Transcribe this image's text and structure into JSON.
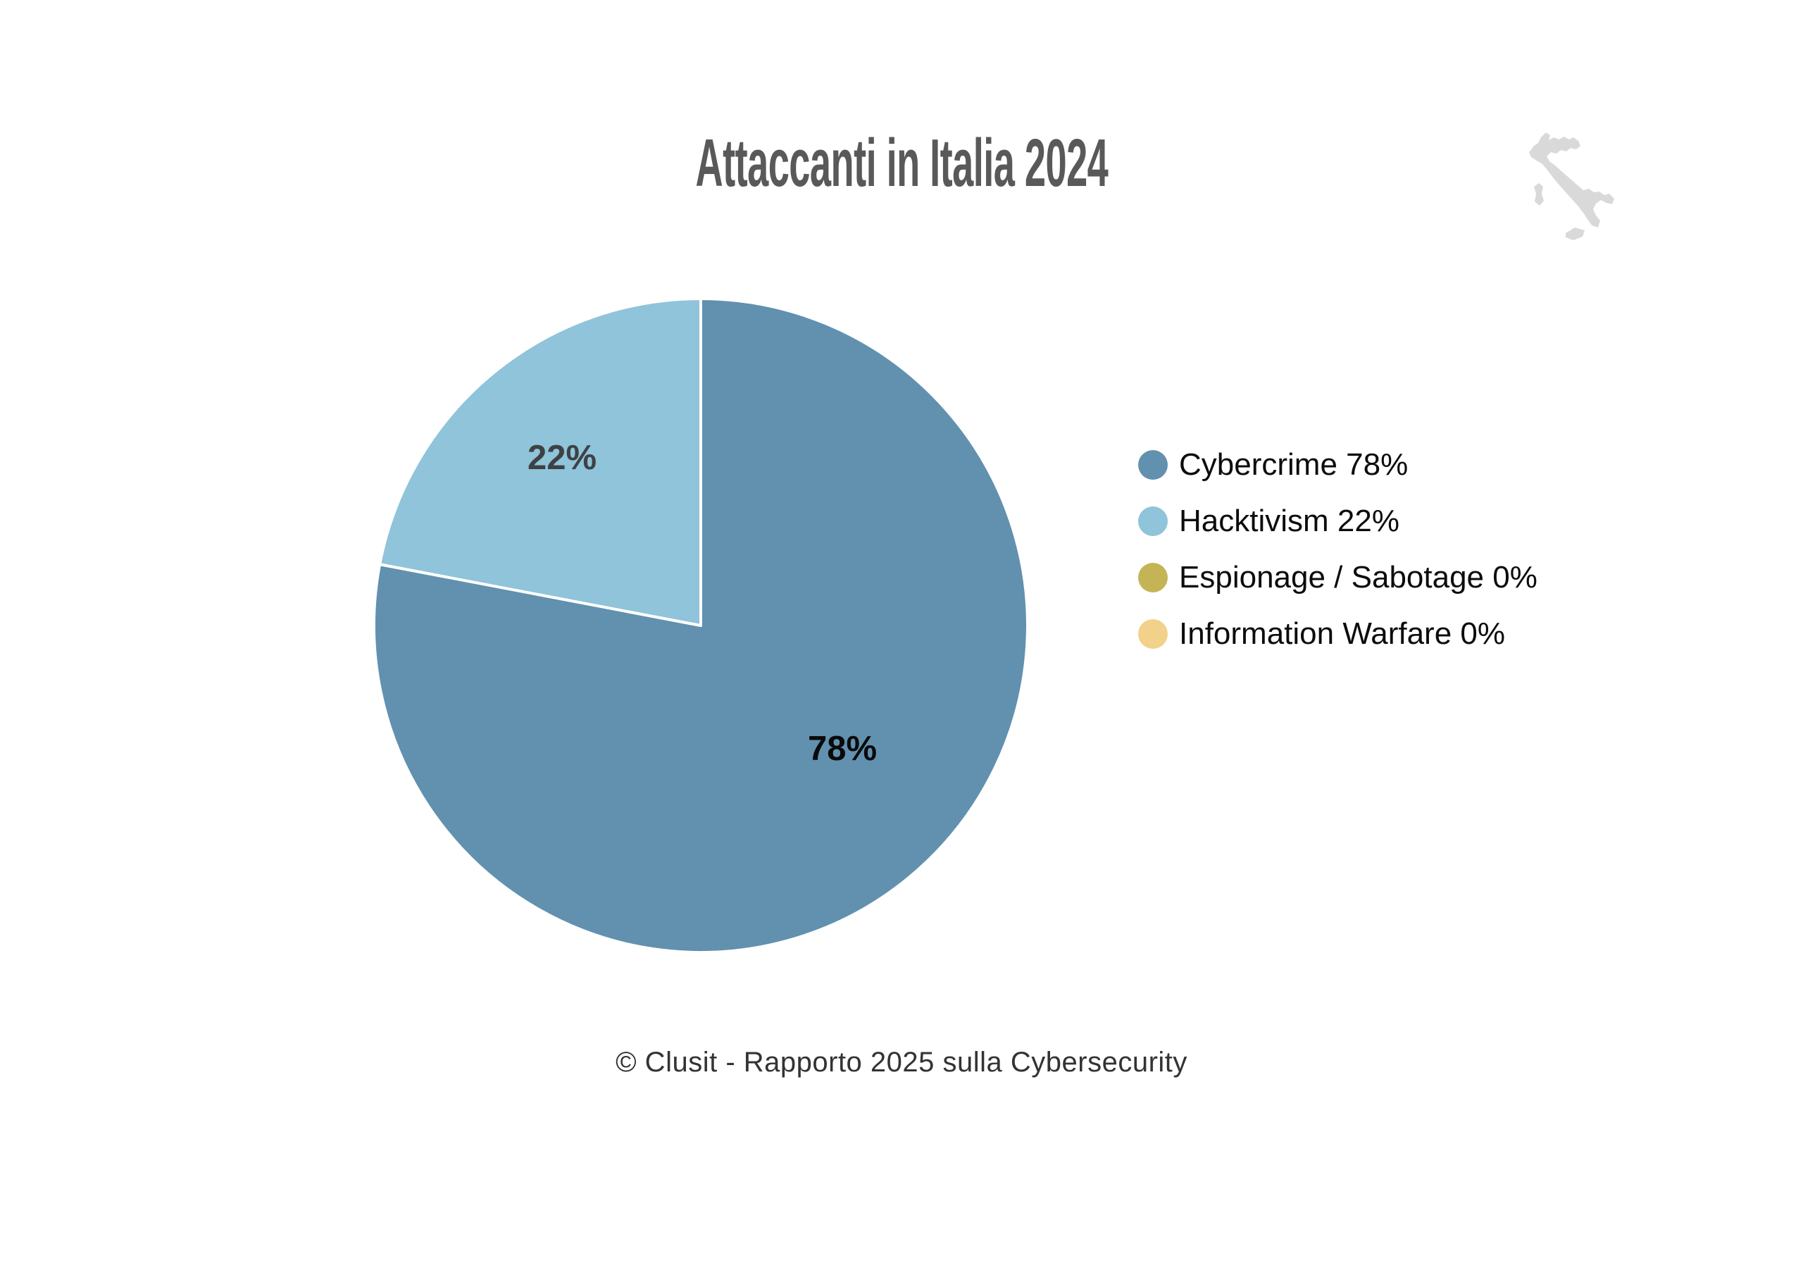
{
  "page": {
    "background_color": "#ffffff",
    "title_color": "#595959",
    "footer": "© Clusit - Rapporto 2025 sulla Cybersecurity",
    "footer_color": "#333333"
  },
  "italy_map": {
    "icon": "italy-silhouette",
    "color": "#d9d9d9"
  },
  "chart_data": {
    "type": "pie",
    "title": "Attaccanti in Italia 2024",
    "start_angle_deg": 0,
    "direction": "clockwise",
    "legend_position": "right",
    "slice_border_color": "#ffffff",
    "legend_text_color": "#0c0c0c",
    "series": [
      {
        "name": "Cybercrime",
        "value": 78,
        "color": "#6191af",
        "slice_label": "78%",
        "slice_label_color": "#0a0a0a"
      },
      {
        "name": "Hacktivism",
        "value": 22,
        "color": "#8fc4da",
        "slice_label": "22%",
        "slice_label_color": "#3e4144"
      },
      {
        "name": "Espionage / Sabotage",
        "value": 0,
        "color": "#c4b455",
        "slice_label": "",
        "slice_label_color": "#3e4144"
      },
      {
        "name": "Information Warfare",
        "value": 0,
        "color": "#f2d18a",
        "slice_label": "",
        "slice_label_color": "#3e4144"
      }
    ],
    "legend": [
      {
        "label": "Cybercrime 78%",
        "color": "#6191af"
      },
      {
        "label": "Hacktivism 22%",
        "color": "#8fc4da"
      },
      {
        "label": "Espionage / Sabotage 0%",
        "color": "#c4b455"
      },
      {
        "label": "Information Warfare 0%",
        "color": "#f2d18a"
      }
    ]
  }
}
